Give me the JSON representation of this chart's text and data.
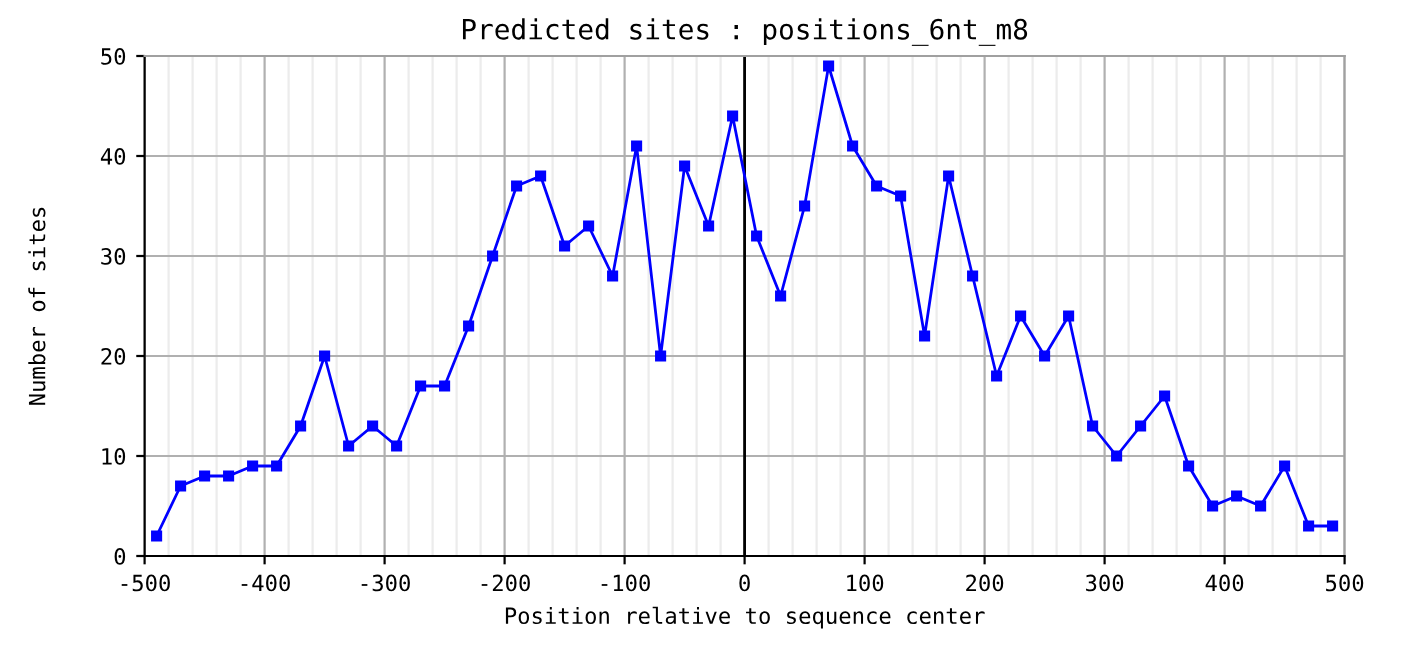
{
  "chart_data": {
    "type": "line",
    "title": "Predicted sites : positions_6nt_m8",
    "xlabel": "Position relative to sequence center",
    "ylabel": "Number of sites",
    "x": [
      -490,
      -470,
      -450,
      -430,
      -410,
      -390,
      -370,
      -350,
      -330,
      -310,
      -290,
      -270,
      -250,
      -230,
      -210,
      -190,
      -170,
      -150,
      -130,
      -110,
      -90,
      -70,
      -50,
      -30,
      -10,
      10,
      30,
      50,
      70,
      90,
      110,
      130,
      150,
      170,
      190,
      210,
      230,
      250,
      270,
      290,
      310,
      330,
      350,
      370,
      390,
      410,
      430,
      450,
      470,
      490
    ],
    "series": [
      {
        "color": "#0000ff",
        "values": [
          2,
          7,
          8,
          8,
          9,
          9,
          13,
          20,
          11,
          13,
          11,
          17,
          17,
          23,
          30,
          37,
          38,
          31,
          33,
          28,
          41,
          20,
          39,
          33,
          44,
          32,
          26,
          35,
          49,
          41,
          37,
          36,
          22,
          38,
          28,
          18,
          24,
          20,
          24,
          13,
          10,
          13,
          16,
          9,
          5,
          6,
          5,
          9,
          3,
          3
        ]
      }
    ],
    "xlim": [
      -500,
      500
    ],
    "xticks": [
      -500,
      -400,
      -300,
      -200,
      -100,
      0,
      100,
      200,
      300,
      400,
      500
    ],
    "ylim": [
      0,
      50
    ],
    "yticks": [
      0,
      10,
      20,
      30,
      40,
      50
    ],
    "grid": true,
    "marker": "square",
    "line_style": "solid",
    "ref_lines": [
      {
        "axis": "x",
        "value": 0,
        "color": "#000000"
      }
    ]
  }
}
